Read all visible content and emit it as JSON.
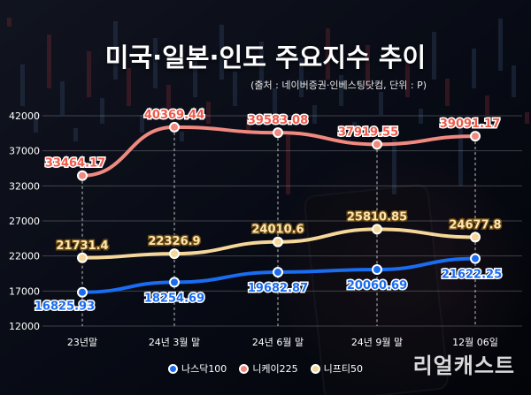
{
  "title": "미국·일본·인도 주요지수 추이",
  "source": "(출처 : 네이버증권·인베스팅닷컴, 단위 : P)",
  "watermark": "리얼캐스트",
  "colors": {
    "nasdaq": "#1a6cf0",
    "nikkei": "#f08a80",
    "nifty": "#f5d79a",
    "nasdaq_label": "#1a6cf0",
    "nikkei_label": "#f05a4a",
    "nifty_label": "#ffe6b0"
  },
  "chart_data": {
    "type": "line",
    "categories": [
      "23년말",
      "24년 3월 말",
      "24년 6월 말",
      "24년 9월 말",
      "12월 06일"
    ],
    "ylim": [
      12000,
      42000
    ],
    "yticks": [
      12000,
      17000,
      22000,
      27000,
      32000,
      37000,
      42000
    ],
    "series": [
      {
        "name": "나스닥100",
        "key": "nasdaq",
        "values": [
          16825.93,
          18254.69,
          19682.87,
          20060.69,
          21622.25
        ],
        "labels": [
          "16825.93",
          "18254.69",
          "19682.87",
          "20060.69",
          "21622.25"
        ]
      },
      {
        "name": "니케이225",
        "key": "nikkei",
        "values": [
          33464.17,
          40369.44,
          39583.08,
          37919.55,
          39091.17
        ],
        "labels": [
          "33464.17",
          "40369.44",
          "39583.08",
          "37919.55",
          "39091.17"
        ]
      },
      {
        "name": "니프티50",
        "key": "nifty",
        "values": [
          21731.4,
          22326.9,
          24010.6,
          25810.85,
          24677.8
        ],
        "labels": [
          "21731.4",
          "22326.9",
          "24010.6",
          "25810.85",
          "24677.8"
        ]
      }
    ],
    "grid": true,
    "legend": "bottom"
  }
}
